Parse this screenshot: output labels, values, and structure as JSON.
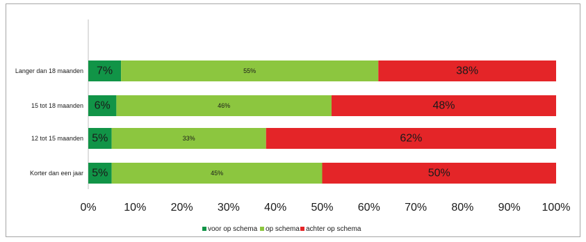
{
  "chart_data": {
    "type": "bar",
    "orientation": "horizontal",
    "stacked": true,
    "normalized": true,
    "categories": [
      "Langer dan 18 maanden",
      "15 tot 18 maanden",
      "12 tot 15 maanden",
      "Korter dan een jaar"
    ],
    "series": [
      {
        "name": "voor op schema",
        "color": "#119447",
        "values": [
          7,
          6,
          5,
          5
        ],
        "labels": [
          "7%",
          "6%",
          "5%",
          "5%"
        ]
      },
      {
        "name": "op schema",
        "color": "#8cc63f",
        "values": [
          55,
          46,
          33,
          45
        ],
        "labels": [
          "55%",
          "46%",
          "33%",
          "45%"
        ]
      },
      {
        "name": "achter op schema",
        "color": "#e42528",
        "values": [
          38,
          48,
          62,
          50
        ],
        "labels": [
          "38%",
          "48%",
          "62%",
          "50%"
        ]
      }
    ],
    "xlim": [
      0,
      100
    ],
    "x_ticks": [
      "0%",
      "10%",
      "20%",
      "30%",
      "40%",
      "50%",
      "60%",
      "70%",
      "80%",
      "90%",
      "100%"
    ],
    "title": "",
    "xlabel": "",
    "ylabel": "",
    "grid": false,
    "legend": "bottom"
  }
}
